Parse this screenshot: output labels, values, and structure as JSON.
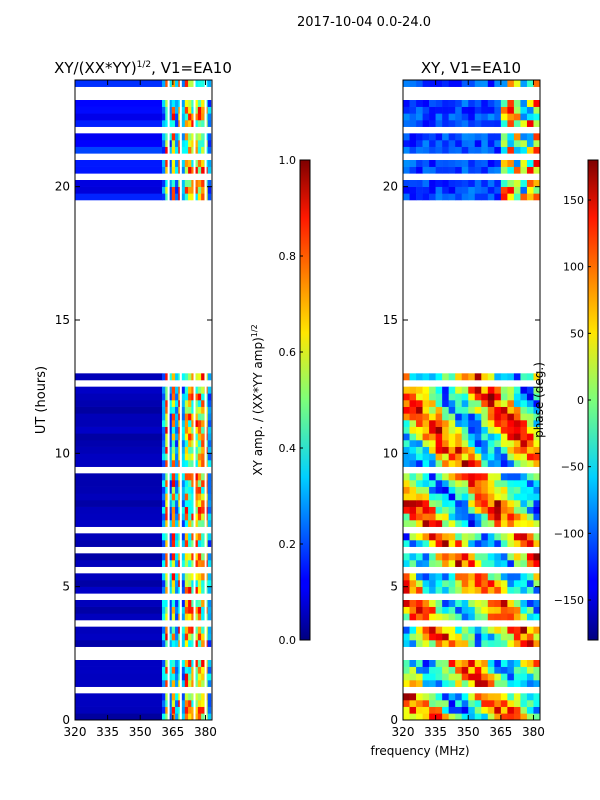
{
  "figure": {
    "suptitle": "2017-10-04 0.0-24.0",
    "xlabel_shared": "frequency (MHz)"
  },
  "colors": {
    "dark_blue": "#00007f",
    "blue": "#0030e0",
    "cyan": "#28d0ff",
    "green": "#7cff7a",
    "yellow": "#ffe600",
    "orange": "#ff8a00",
    "red": "#e01000",
    "dark_red": "#7f0000"
  },
  "chart_data": [
    {
      "type": "heatmap",
      "title": "XY/(XX*YY)",
      "title_exponent": "1/2",
      "title_suffix": ", V1=EA10",
      "xlabel": "",
      "ylabel": "UT (hours)",
      "xlim": [
        320,
        383
      ],
      "ylim": [
        0,
        24
      ],
      "xticks": [
        "320",
        "335",
        "350",
        "365",
        "380"
      ],
      "yticks": [
        "0",
        "5",
        "10",
        "15",
        "20"
      ],
      "colorbar": {
        "label": "XY amp. / (XX*YY amp)",
        "label_exponent": "1/2",
        "range": [
          0.0,
          1.0
        ],
        "ticks": [
          "0.0",
          "0.2",
          "0.4",
          "0.6",
          "0.8",
          "1.0"
        ]
      },
      "empty_time_ranges": [
        [
          12.8,
          19.4
        ]
      ],
      "description_values": "low amplitude (~0.05) for 320-360 MHz, bright channels (0.3-0.9) between 360 and 380 MHz"
    },
    {
      "type": "heatmap",
      "title": "XY, V1=EA10",
      "xlabel": "",
      "ylabel": "",
      "xlim": [
        320,
        383
      ],
      "ylim": [
        0,
        24
      ],
      "xticks": [
        "320",
        "335",
        "350",
        "365",
        "380"
      ],
      "yticks": [
        "0",
        "5",
        "10",
        "15",
        "20"
      ],
      "colorbar": {
        "label": "phase (deg.)",
        "range": [
          -180,
          180
        ],
        "ticks": [
          "-150",
          "-100",
          "-50",
          "0",
          "50",
          "100",
          "150"
        ]
      },
      "empty_time_ranges": [
        [
          12.8,
          19.4
        ]
      ]
    }
  ]
}
